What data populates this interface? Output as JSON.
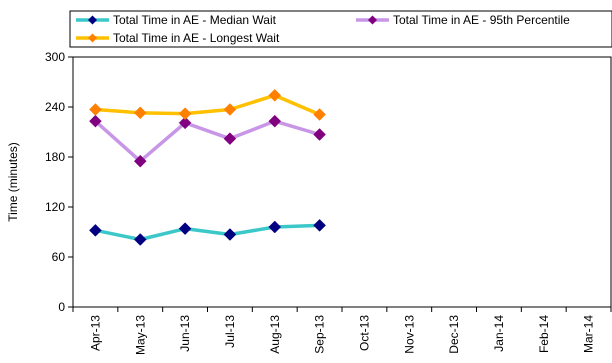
{
  "header_fragment": "",
  "chart_data": {
    "type": "line",
    "title": "",
    "xlabel": "",
    "ylabel": "Time (minutes)",
    "ylim": [
      0,
      300
    ],
    "yticks": [
      0,
      60,
      120,
      180,
      240,
      300
    ],
    "grid": false,
    "legend_position": "top",
    "categories": [
      "Apr-13",
      "May-13",
      "Jun-13",
      "Jul-13",
      "Aug-13",
      "Sep-13",
      "Oct-13",
      "Nov-13",
      "Dec-13",
      "Jan-14",
      "Feb-14",
      "Mar-14"
    ],
    "series": [
      {
        "name": "Total Time in AE - Median Wait",
        "color": "#3cc8c8",
        "marker_color": "#000080",
        "values": [
          92,
          81,
          94,
          87,
          96,
          98,
          null,
          null,
          null,
          null,
          null,
          null
        ]
      },
      {
        "name": "Total Time in AE - 95th Percentile",
        "color": "#c896e6",
        "marker_color": "#800080",
        "values": [
          223,
          175,
          221,
          202,
          223,
          207,
          null,
          null,
          null,
          null,
          null,
          null
        ]
      },
      {
        "name": "Total Time in AE - Longest Wait",
        "color": "#ffc000",
        "marker_color": "#ff8000",
        "values": [
          237,
          233,
          232,
          237,
          254,
          231,
          null,
          null,
          null,
          null,
          null,
          null
        ]
      }
    ]
  }
}
